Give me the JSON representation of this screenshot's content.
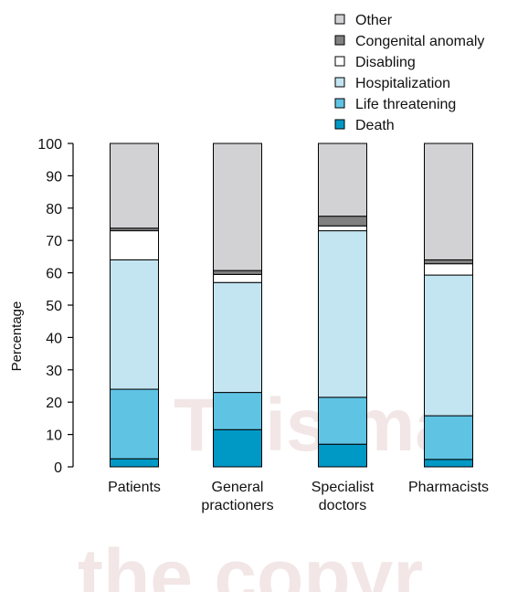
{
  "chart_data": {
    "type": "bar",
    "stacked": true,
    "categories": [
      [
        "Patients"
      ],
      [
        "General",
        "practioners"
      ],
      [
        "Specialist",
        "doctors"
      ],
      [
        "Pharmacists"
      ]
    ],
    "ylabel": "Percentage",
    "xlabel": "",
    "ylim": [
      0,
      100
    ],
    "yticks": [
      0,
      10,
      20,
      30,
      40,
      50,
      60,
      70,
      80,
      90,
      100
    ],
    "legend_position": "top-right",
    "series": [
      {
        "name": "Death",
        "color": "#0099c6",
        "values": [
          2.5,
          11.5,
          7.0,
          2.3
        ]
      },
      {
        "name": "Life threatening",
        "color": "#5fc3e4",
        "values": [
          21.5,
          11.5,
          14.5,
          13.5
        ]
      },
      {
        "name": "Hospitalization",
        "color": "#c3e5f1",
        "values": [
          40.0,
          34.0,
          51.5,
          43.5
        ]
      },
      {
        "name": "Disabling",
        "color": "#ffffff",
        "values": [
          9.0,
          2.5,
          1.5,
          3.5
        ]
      },
      {
        "name": "Congenital anomaly",
        "color": "#808080",
        "values": [
          0.8,
          1.2,
          3.0,
          1.2
        ]
      },
      {
        "name": "Other",
        "color": "#d2d2d4",
        "values": [
          26.2,
          39.3,
          22.5,
          36.0
        ]
      }
    ],
    "watermark": [
      "This ma",
      "the copyr"
    ]
  }
}
